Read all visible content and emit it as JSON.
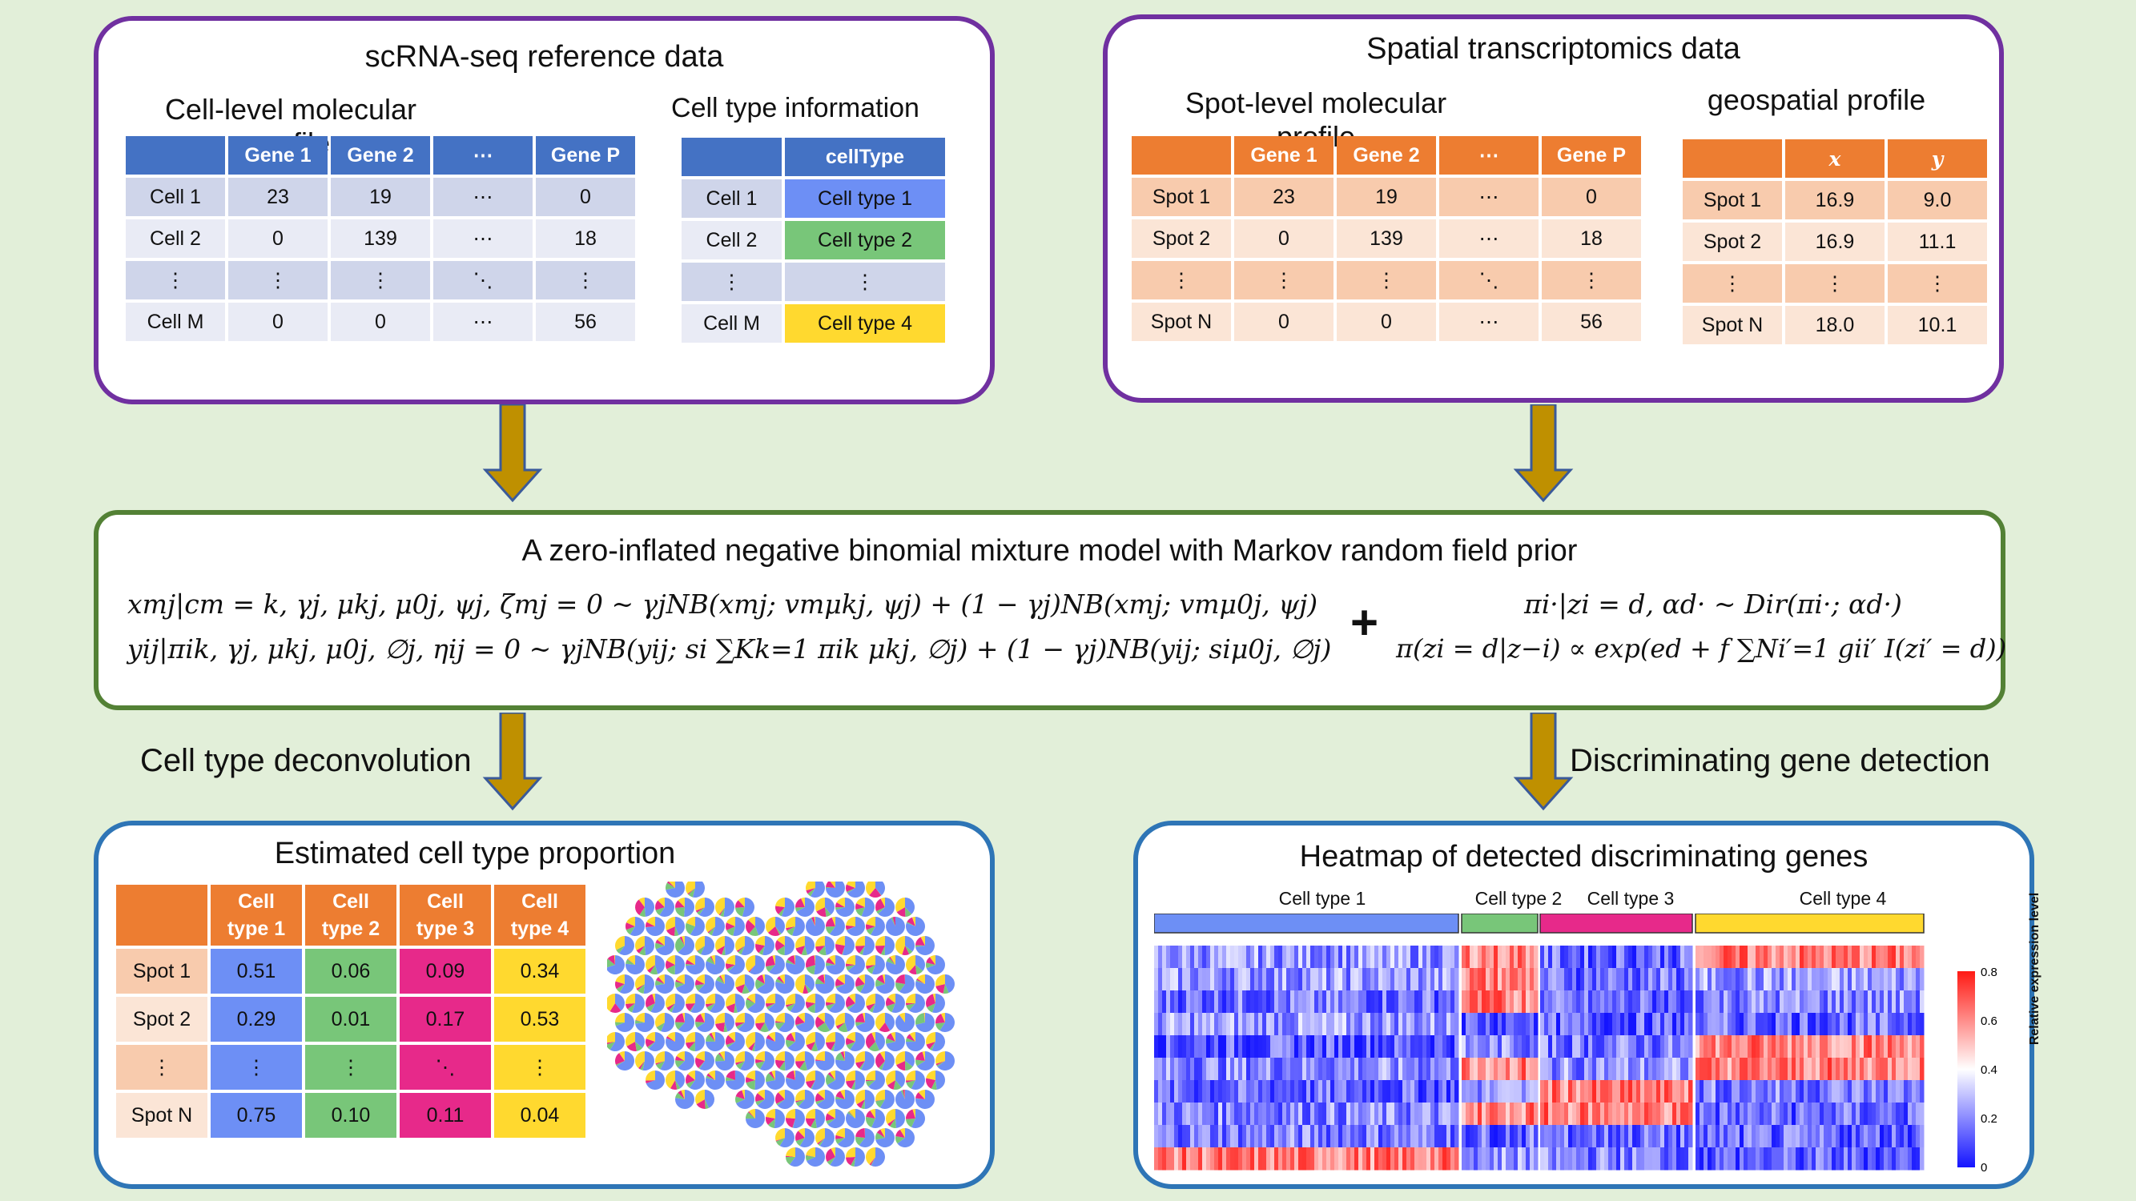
{
  "scrna": {
    "title": "scRNA-seq reference data",
    "profile_title": "Cell-level molecular profile",
    "celltype_title": "Cell type information",
    "headers": [
      "",
      "Gene 1",
      "Gene 2",
      "⋯",
      "Gene P"
    ],
    "rows": [
      [
        "Cell 1",
        "23",
        "19",
        "⋯",
        "0"
      ],
      [
        "Cell 2",
        "0",
        "139",
        "⋯",
        "18"
      ],
      [
        "⋮",
        "⋮",
        "⋮",
        "⋱",
        "⋮"
      ],
      [
        "Cell M",
        "0",
        "0",
        "⋯",
        "56"
      ]
    ],
    "ct_header": [
      "",
      "cellType"
    ],
    "ct_rows": [
      [
        "Cell 1",
        "Cell type 1"
      ],
      [
        "Cell 2",
        "Cell type 2"
      ],
      [
        "⋮",
        "⋮"
      ],
      [
        "Cell M",
        "Cell type 4"
      ]
    ]
  },
  "spatial": {
    "title": "Spatial transcriptomics data",
    "profile_title": "Spot-level molecular profile",
    "geo_title": "geospatial profile",
    "headers": [
      "",
      "Gene 1",
      "Gene 2",
      "⋯",
      "Gene P"
    ],
    "rows": [
      [
        "Spot 1",
        "23",
        "19",
        "⋯",
        "0"
      ],
      [
        "Spot 2",
        "0",
        "139",
        "⋯",
        "18"
      ],
      [
        "⋮",
        "⋮",
        "⋮",
        "⋱",
        "⋮"
      ],
      [
        "Spot N",
        "0",
        "0",
        "⋯",
        "56"
      ]
    ],
    "geo_header": [
      "",
      "x",
      "y"
    ],
    "geo_rows": [
      [
        "Spot 1",
        "16.9",
        "9.0"
      ],
      [
        "Spot 2",
        "16.9",
        "11.1"
      ],
      [
        "⋮",
        "⋮",
        "⋮"
      ],
      [
        "Spot N",
        "18.0",
        "10.1"
      ]
    ]
  },
  "model": {
    "title": "A zero-inflated negative binomial mixture model with Markov random field prior",
    "eq1": "xmj|cm = k, γj, μkj, μ0j, ψj, ζmj = 0 ~ γjNB(xmj; vmμkj, ψj) + (1 − γj)NB(xmj; vmμ0j, ψj)",
    "eq2": "yij|πik, γj, μkj, μ0j, ∅j, ηij = 0 ~ γjNB(yij; si ∑Kk=1 πik μkj, ∅j) + (1 − γj)NB(yij; siμ0j, ∅j)",
    "plus": "+",
    "eq3": "πi·|zi = d, αd· ~ Dir(πi·; αd·)",
    "eq4": "π(zi = d|z−i) ∝ exp(ed + f ∑Ni′=1 gii′ I(zi′ = d))"
  },
  "labels": {
    "deconv": "Cell type deconvolution",
    "detect": "Discriminating gene detection"
  },
  "proportion": {
    "title": "Estimated cell type proportion",
    "headers": [
      "",
      "Cell type 1",
      "Cell type 2",
      "Cell type 3",
      "Cell type 4"
    ],
    "rows": [
      [
        "Spot 1",
        "0.51",
        "0.06",
        "0.09",
        "0.34"
      ],
      [
        "Spot 2",
        "0.29",
        "0.01",
        "0.17",
        "0.53"
      ],
      [
        "⋮",
        "⋮",
        "⋮",
        "⋱",
        "⋮"
      ],
      [
        "Spot N",
        "0.75",
        "0.10",
        "0.11",
        "0.04"
      ]
    ],
    "type_colors": [
      "#6d8ff5",
      "#78c679",
      "#e7298a",
      "#ffd92f"
    ]
  },
  "heatmap": {
    "title": "Heatmap of detected discriminating genes",
    "groups": [
      "Cell type 1",
      "Cell type 2",
      "Cell type 3",
      "Cell type 4"
    ],
    "legend_title": "Relative expression level",
    "legend_ticks": [
      "0.8",
      "0.6",
      "0.4",
      "0.2",
      "0"
    ]
  },
  "colors": {
    "purple": "#7030a0",
    "green": "#538135",
    "blue": "#2e75b6",
    "arrow": "#bf9000",
    "table_blue": "#4472c4",
    "table_orange": "#ed7d31"
  }
}
